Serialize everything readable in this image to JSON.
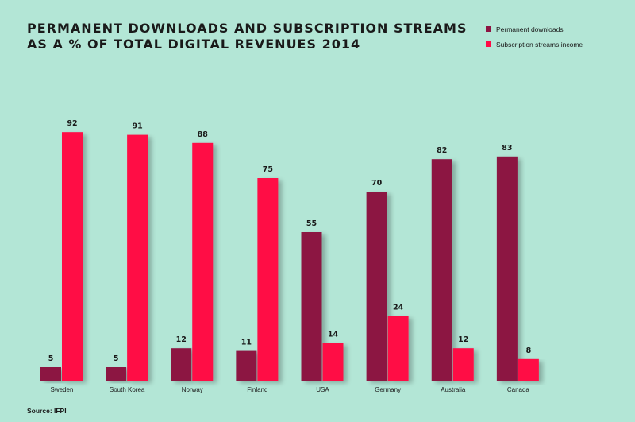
{
  "title_line1": "PERMANENT DOWNLOADS AND SUBSCRIPTION STREAMS",
  "title_line2": "AS A % OF TOTAL DIGITAL REVENUES 2014",
  "source": "Source: IFPI",
  "colors": {
    "background": "#b3e6d6",
    "permanent_downloads": "#8c1442",
    "subscription_streams": "#ff0a45",
    "axis": "#555555"
  },
  "chart_data": {
    "type": "bar",
    "title": "PERMANENT DOWNLOADS AND SUBSCRIPTION STREAMS AS A % OF TOTAL DIGITAL REVENUES 2014",
    "categories": [
      "Sweden",
      "South Korea",
      "Norway",
      "Finland",
      "USA",
      "Germany",
      "Australia",
      "Canada"
    ],
    "series": [
      {
        "name": "Permanent downloads",
        "values": [
          5,
          5,
          12,
          11,
          55,
          70,
          82,
          83
        ]
      },
      {
        "name": "Subscription streams income",
        "values": [
          92,
          91,
          88,
          75,
          14,
          24,
          12,
          8
        ]
      }
    ],
    "ylim": [
      0,
      100
    ],
    "grid": false,
    "legend": "top-right"
  }
}
